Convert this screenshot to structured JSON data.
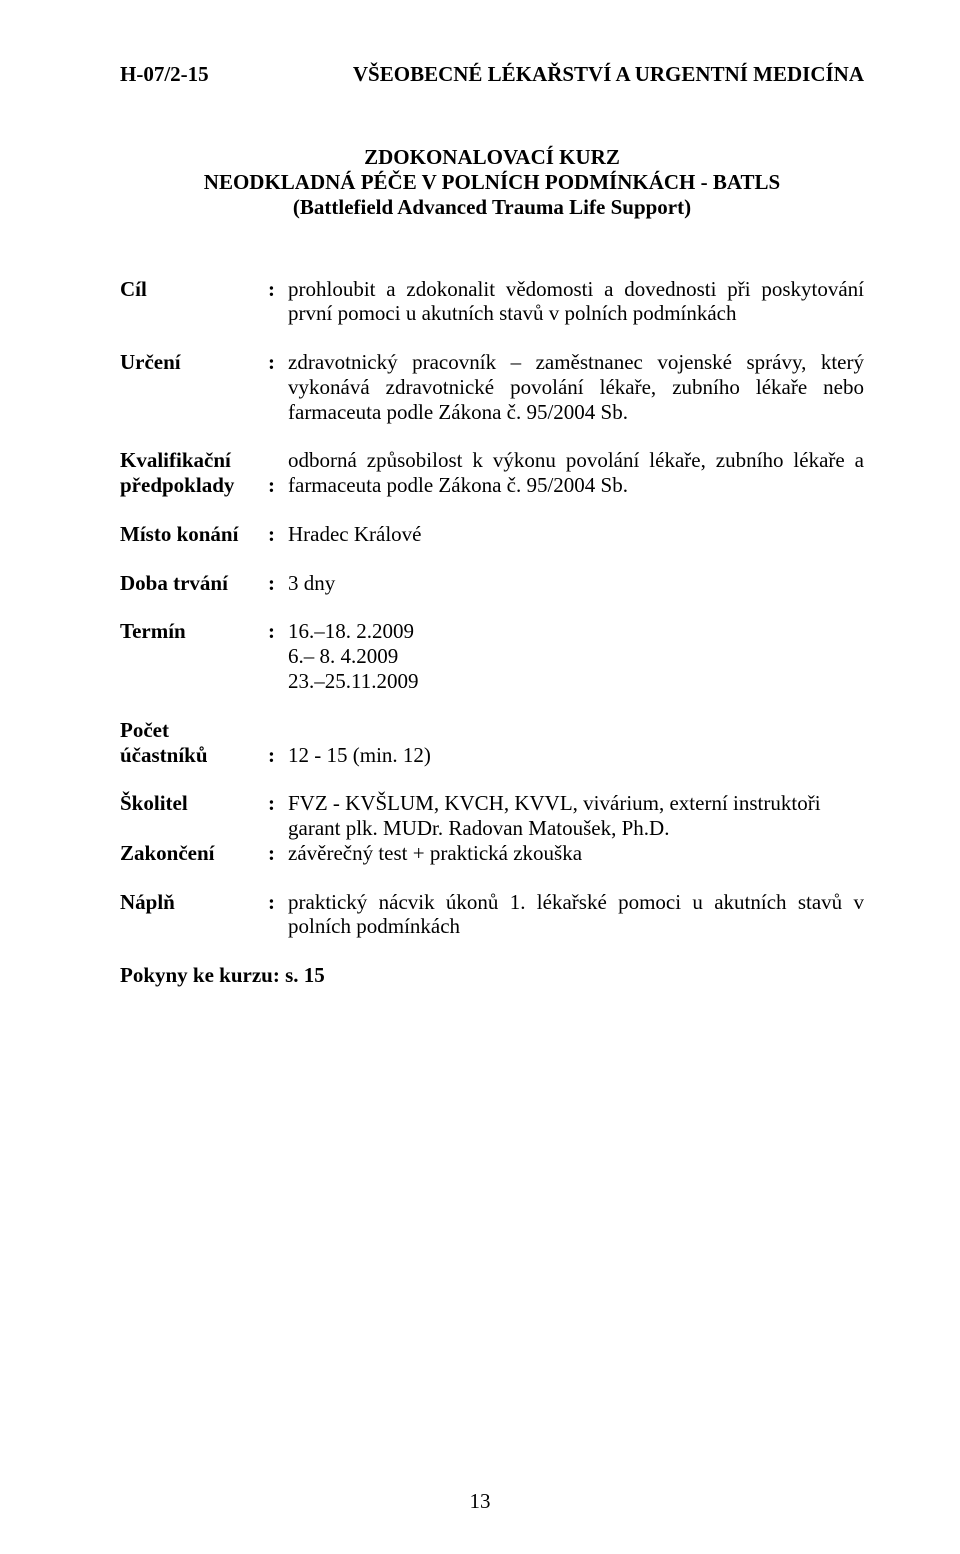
{
  "header": {
    "code": "H-07/2-15",
    "category": "VŠEOBECNÉ LÉKAŘSTVÍ A URGENTNÍ  MEDICÍNA"
  },
  "title": {
    "line1": "ZDOKONALOVACÍ KURZ",
    "line2": "NEODKLADNÁ PÉČE V POLNÍCH PODMÍNKÁCH - BATLS",
    "line3": "(Battlefield Advanced Trauma Life Support)"
  },
  "fields": {
    "cil": {
      "label": "Cíl",
      "value": "prohloubit a zdokonalit vědomosti a dovednosti při poskytování první pomoci u akutních stavů v polních podmínkách"
    },
    "urceni": {
      "label": "Určení",
      "value": "zdravotnický pracovník – zaměstnanec vojenské správy, který vykonává zdravotnické povolání lékaře, zubního lékaře nebo farmaceuta podle Zákona č. 95/2004 Sb."
    },
    "kvalifikacni": {
      "label_l1": "Kvalifikační",
      "label_l2": "předpoklady",
      "value": "odborná způsobilost k výkonu povolání lékaře, zubního lékaře a farmaceuta podle Zákona č. 95/2004 Sb."
    },
    "misto": {
      "label": "Místo konání",
      "value": "Hradec Králové"
    },
    "doba": {
      "label": "Doba trvání",
      "value": "3 dny"
    },
    "termin": {
      "label": "Termín",
      "value": "16.–18.  2.2009\n  6.–  8.  4.2009\n23.–25.11.2009"
    },
    "pocet": {
      "label_l1": "Počet",
      "label_l2": "účastníků",
      "value": "12 - 15 (min. 12)"
    },
    "skolitel": {
      "label": "Školitel",
      "value": "FVZ - KVŠLUM, KVCH, KVVL, vivárium, externí instruktoři\ngarant plk. MUDr. Radovan Matoušek, Ph.D."
    },
    "zakonceni": {
      "label": "Zakončení",
      "value": "závěrečný test + praktická zkouška"
    },
    "napln": {
      "label": "Náplň",
      "value": "praktický nácvik úkonů 1. lékařské pomoci u akutních stavů v polních podmínkách"
    }
  },
  "instructions": "Pokyny ke kurzu:  s. 15",
  "pagenum": "13"
}
